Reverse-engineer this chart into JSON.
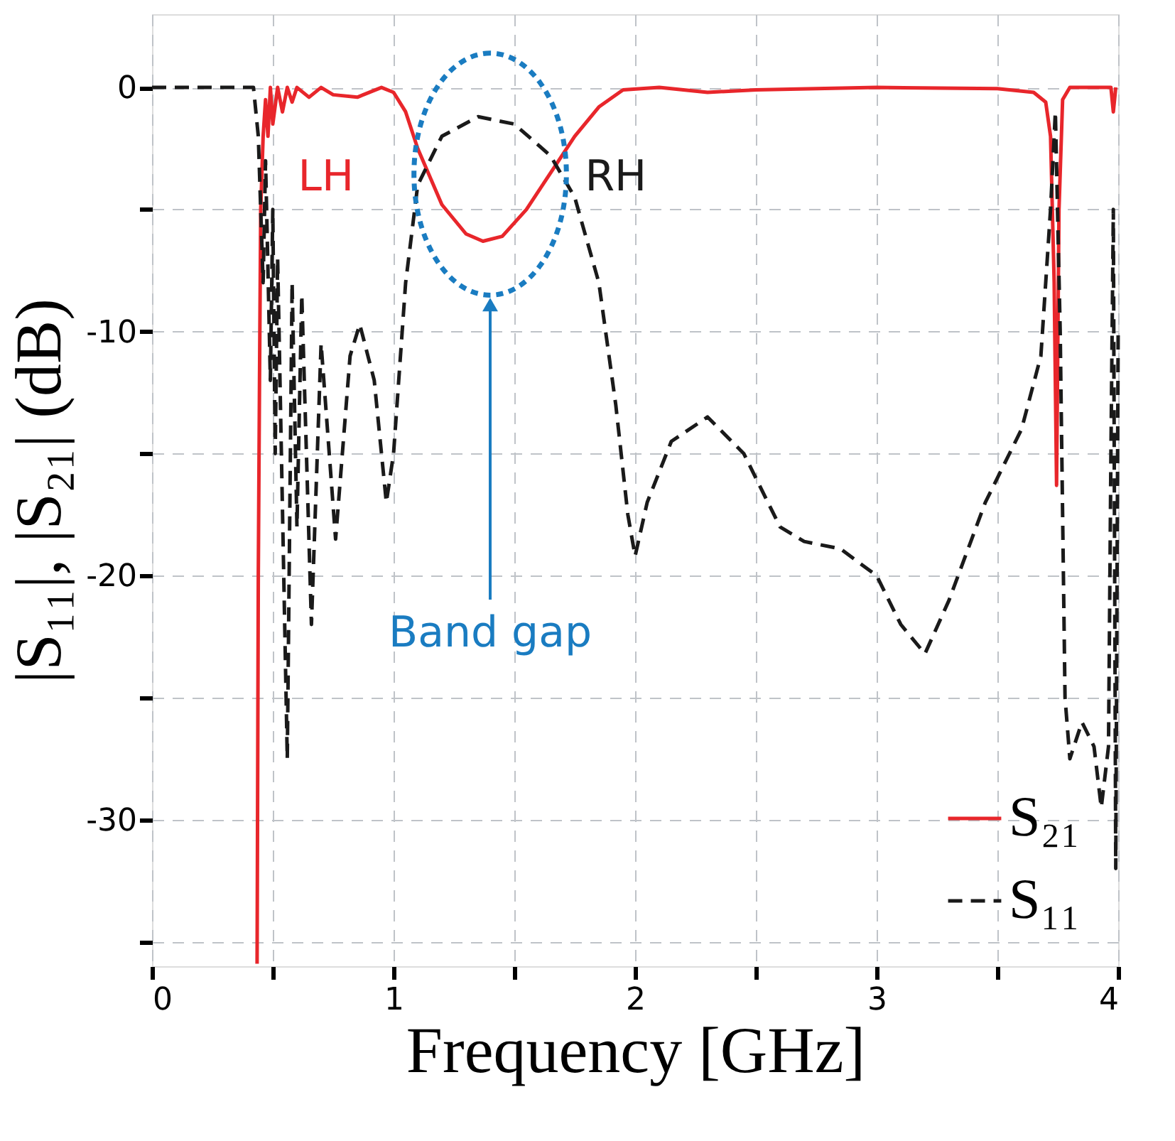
{
  "chart_data": {
    "type": "line",
    "xlabel": "Frequency [GHz]",
    "ylabel": "|S₁₁|, |S₂₁| (dB)",
    "xlim": [
      0,
      4
    ],
    "ylim": [
      -36,
      3
    ],
    "xticks": [
      0,
      {
        "value": 0.5,
        "label": null
      },
      1,
      {
        "value": 1.5,
        "label": null
      },
      2,
      {
        "value": 2.5,
        "label": null
      },
      3,
      {
        "value": 3.5,
        "label": null
      },
      4
    ],
    "yticks": [
      {
        "value": -35,
        "label": null
      },
      -30,
      {
        "value": -25,
        "label": null
      },
      -20,
      {
        "value": -15,
        "label": null
      },
      -10,
      {
        "value": -5,
        "label": null
      },
      0
    ],
    "grid": true,
    "legend": "bottom right",
    "series": [
      {
        "name": "S₂₁",
        "color": "#e8262b",
        "line_style": "solid",
        "x": [
          0.435,
          0.44,
          0.445,
          0.45,
          0.46,
          0.47,
          0.48,
          0.49,
          0.5,
          0.52,
          0.54,
          0.56,
          0.58,
          0.6,
          0.65,
          0.7,
          0.75,
          0.85,
          0.95,
          1.0,
          1.05,
          1.1,
          1.2,
          1.3,
          1.37,
          1.45,
          1.55,
          1.65,
          1.75,
          1.85,
          1.95,
          2.1,
          2.3,
          2.5,
          3.0,
          3.5,
          3.65,
          3.7,
          3.72,
          3.735,
          3.745,
          3.755,
          3.77,
          3.8,
          3.9,
          3.97,
          3.98,
          3.99
        ],
        "values": [
          -35.9,
          -20,
          -12,
          -5,
          -2,
          -0.5,
          -2,
          0,
          -1.5,
          0,
          -1,
          0,
          -0.6,
          0,
          -0.4,
          0,
          -0.3,
          -0.4,
          0,
          -0.2,
          -1,
          -2.5,
          -4.8,
          -6,
          -6.3,
          -6.1,
          -5,
          -3.5,
          -2,
          -0.8,
          -0.1,
          0,
          -0.2,
          -0.1,
          0,
          -0.05,
          -0.2,
          -0.6,
          -2,
          -8,
          -16.3,
          -5,
          -0.5,
          0,
          0,
          0,
          -1,
          0
        ]
      },
      {
        "name": "S₁₁",
        "color": "#1a1a1a",
        "line_style": "dashed",
        "x": [
          0,
          0.42,
          0.44,
          0.46,
          0.47,
          0.49,
          0.5,
          0.51,
          0.52,
          0.56,
          0.58,
          0.6,
          0.62,
          0.66,
          0.7,
          0.76,
          0.82,
          0.86,
          0.92,
          0.97,
          1.0,
          1.05,
          1.1,
          1.2,
          1.35,
          1.5,
          1.65,
          1.75,
          1.85,
          1.92,
          1.97,
          2.0,
          2.05,
          2.15,
          2.3,
          2.45,
          2.6,
          2.7,
          2.85,
          3.0,
          3.1,
          3.2,
          3.3,
          3.45,
          3.6,
          3.68,
          3.72,
          3.74,
          3.76,
          3.78,
          3.8,
          3.85,
          3.9,
          3.93,
          3.96,
          3.97,
          3.98,
          3.99,
          4.0
        ],
        "values": [
          0,
          0,
          -2,
          -8,
          -3,
          -12,
          -5,
          -15,
          -7,
          -27.5,
          -8,
          -18,
          -8.5,
          -22,
          -10.5,
          -18.5,
          -11,
          -9.7,
          -12,
          -17,
          -15,
          -8,
          -4,
          -2,
          -1.2,
          -1.5,
          -2.8,
          -4.5,
          -8,
          -13,
          -17.5,
          -19.2,
          -17,
          -14.5,
          -13.5,
          -15,
          -18,
          -18.6,
          -18.9,
          -20,
          -22,
          -23.2,
          -21,
          -17,
          -14,
          -11,
          -5,
          -1,
          -10,
          -25,
          -27.5,
          -26,
          -27,
          -29.5,
          -27,
          -15,
          -5,
          -32,
          -10
        ]
      }
    ],
    "annotations": [
      "LH",
      "RH",
      "Band gap"
    ]
  }
}
